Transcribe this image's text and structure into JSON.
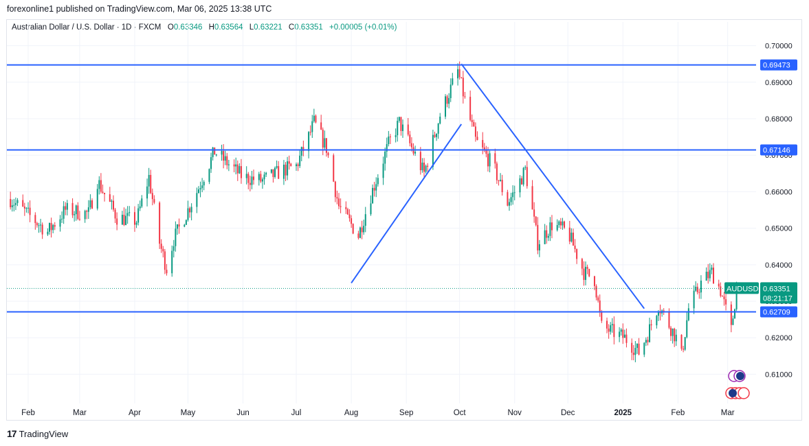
{
  "publisher_line": "forexonline1 published on TradingView.com, Mar 06, 2025 13:38 UTC",
  "brand": {
    "logo": "17",
    "name": "TradingView"
  },
  "legend": {
    "symbol": "Australian Dollar / U.S. Dollar · 1D · FXCM",
    "open_label": "O",
    "open": "0.63346",
    "high_label": "H",
    "high": "0.63564",
    "low_label": "L",
    "low": "0.63221",
    "close_label": "C",
    "close": "0.63351",
    "change": "+0.00005 (+0.01%)"
  },
  "colors": {
    "up": "#089981",
    "down": "#f23645",
    "line": "#2962ff",
    "grid": "#f0f3fa",
    "axis_text": "#131722"
  },
  "chart_data": {
    "type": "candlestick",
    "symbol": "AUDUSD",
    "yticks": [
      0.61,
      0.62,
      0.63,
      0.64,
      0.65,
      0.66,
      0.67,
      0.68,
      0.69,
      0.7
    ],
    "ytick_labels": [
      "0.61000",
      "0.62000",
      "0.63000",
      "0.64000",
      "0.65000",
      "0.66000",
      "0.67000",
      "0.68000",
      "0.69000",
      "0.70000"
    ],
    "ylim": [
      0.602,
      0.705
    ],
    "xticks": [
      {
        "label": "Feb",
        "date": "2024-02-01",
        "bold": false
      },
      {
        "label": "Mar",
        "date": "2024-03-01",
        "bold": false
      },
      {
        "label": "Apr",
        "date": "2024-04-01",
        "bold": false
      },
      {
        "label": "May",
        "date": "2024-05-01",
        "bold": false
      },
      {
        "label": "Jun",
        "date": "2024-06-01",
        "bold": false
      },
      {
        "label": "Jul",
        "date": "2024-07-01",
        "bold": false
      },
      {
        "label": "Aug",
        "date": "2024-08-01",
        "bold": false
      },
      {
        "label": "Sep",
        "date": "2024-09-01",
        "bold": false
      },
      {
        "label": "Oct",
        "date": "2024-10-01",
        "bold": false
      },
      {
        "label": "Nov",
        "date": "2024-11-01",
        "bold": false
      },
      {
        "label": "Dec",
        "date": "2024-12-01",
        "bold": false
      },
      {
        "label": "2025",
        "date": "2025-01-01",
        "bold": true
      },
      {
        "label": "Feb",
        "date": "2025-02-01",
        "bold": false
      },
      {
        "label": "Mar",
        "date": "2025-03-01",
        "bold": false
      }
    ],
    "xlim": [
      "2024-01-20",
      "2025-03-17"
    ],
    "closes": [
      {
        "date": "2024-01-22",
        "close": 0.658
      },
      {
        "date": "2024-02-05",
        "close": 0.652
      },
      {
        "date": "2024-02-12",
        "close": 0.649
      },
      {
        "date": "2024-02-22",
        "close": 0.655
      },
      {
        "date": "2024-03-06",
        "close": 0.654
      },
      {
        "date": "2024-03-11",
        "close": 0.663
      },
      {
        "date": "2024-03-22",
        "close": 0.653
      },
      {
        "date": "2024-04-02",
        "close": 0.652
      },
      {
        "date": "2024-04-09",
        "close": 0.664
      },
      {
        "date": "2024-04-15",
        "close": 0.646
      },
      {
        "date": "2024-04-19",
        "close": 0.639
      },
      {
        "date": "2024-04-23",
        "close": 0.647
      },
      {
        "date": "2024-05-06",
        "close": 0.66
      },
      {
        "date": "2024-05-16",
        "close": 0.671
      },
      {
        "date": "2024-06-01",
        "close": 0.664
      },
      {
        "date": "2024-06-12",
        "close": 0.663
      },
      {
        "date": "2024-06-24",
        "close": 0.666
      },
      {
        "date": "2024-07-01",
        "close": 0.667
      },
      {
        "date": "2024-07-08",
        "close": 0.675
      },
      {
        "date": "2024-07-11",
        "close": 0.679
      },
      {
        "date": "2024-07-18",
        "close": 0.672
      },
      {
        "date": "2024-07-25",
        "close": 0.656
      },
      {
        "date": "2024-08-01",
        "close": 0.651
      },
      {
        "date": "2024-08-05",
        "close": 0.648
      },
      {
        "date": "2024-08-12",
        "close": 0.659
      },
      {
        "date": "2024-08-22",
        "close": 0.673
      },
      {
        "date": "2024-08-28",
        "close": 0.679
      },
      {
        "date": "2024-09-06",
        "close": 0.67
      },
      {
        "date": "2024-09-11",
        "close": 0.665
      },
      {
        "date": "2024-09-20",
        "close": 0.681
      },
      {
        "date": "2024-09-30",
        "close": 0.693
      },
      {
        "date": "2024-10-04",
        "close": 0.685
      },
      {
        "date": "2024-10-10",
        "close": 0.674
      },
      {
        "date": "2024-10-20",
        "close": 0.667
      },
      {
        "date": "2024-10-28",
        "close": 0.657
      },
      {
        "date": "2024-11-01",
        "close": 0.66
      },
      {
        "date": "2024-11-07",
        "close": 0.666
      },
      {
        "date": "2024-11-14",
        "close": 0.646
      },
      {
        "date": "2024-11-22",
        "close": 0.651
      },
      {
        "date": "2024-12-01",
        "close": 0.649
      },
      {
        "date": "2024-12-10",
        "close": 0.638
      },
      {
        "date": "2024-12-16",
        "close": 0.636
      },
      {
        "date": "2024-12-20",
        "close": 0.623
      },
      {
        "date": "2025-01-02",
        "close": 0.62
      },
      {
        "date": "2025-01-10",
        "close": 0.616
      },
      {
        "date": "2025-01-15",
        "close": 0.621
      },
      {
        "date": "2025-01-21",
        "close": 0.629
      },
      {
        "date": "2025-01-31",
        "close": 0.62
      },
      {
        "date": "2025-02-03",
        "close": 0.615
      },
      {
        "date": "2025-02-07",
        "close": 0.628
      },
      {
        "date": "2025-02-14",
        "close": 0.635
      },
      {
        "date": "2025-02-20",
        "close": 0.638
      },
      {
        "date": "2025-02-25",
        "close": 0.633
      },
      {
        "date": "2025-03-03",
        "close": 0.622
      },
      {
        "date": "2025-03-06",
        "close": 0.6335
      }
    ],
    "horizontal_lines": [
      {
        "price": 0.69473,
        "label": "0.69473"
      },
      {
        "price": 0.67146,
        "label": "0.67146"
      },
      {
        "price": 0.62709,
        "label": "0.62709"
      }
    ],
    "trend_lines": [
      {
        "from": {
          "date": "2024-08-01",
          "price": 0.635
        },
        "to": {
          "date": "2024-10-02",
          "price": 0.6785
        }
      },
      {
        "from": {
          "date": "2024-10-02",
          "price": 0.695
        },
        "to": {
          "date": "2025-01-13",
          "price": 0.628
        }
      }
    ],
    "last_price": {
      "symbol": "AUDUSD",
      "price": "0.63351",
      "value": 0.63351,
      "countdown": "08:21:17"
    }
  }
}
